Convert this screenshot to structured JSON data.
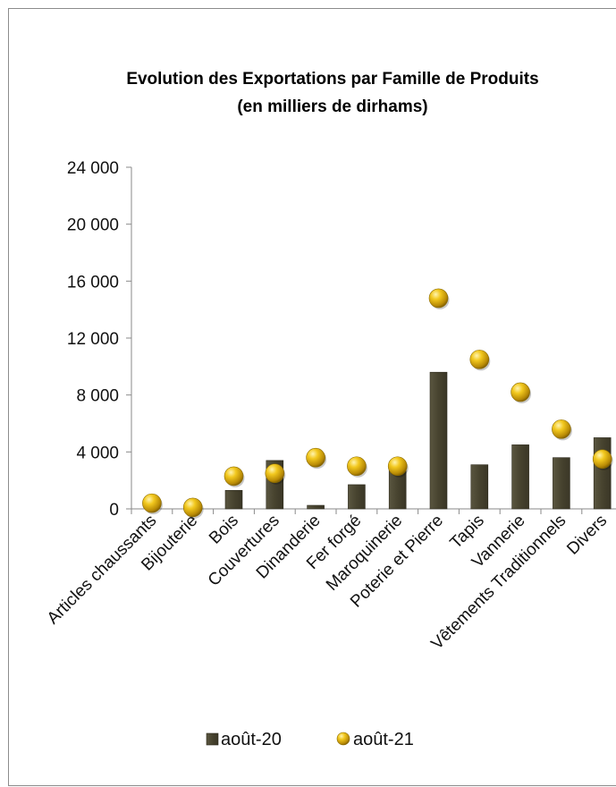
{
  "chart_data": {
    "type": "bar",
    "title": "Evolution des Exportations  par Famille de Produits",
    "subtitle": "(en milliers de dirhams)",
    "xlabel": "",
    "ylabel": "",
    "ylim": [
      0,
      24000
    ],
    "yticks": [
      0,
      4000,
      8000,
      12000,
      16000,
      20000,
      24000
    ],
    "ytick_labels": [
      "0",
      "4 000",
      "8 000",
      "12 000",
      "16 000",
      "20 000",
      "24 000"
    ],
    "grid": false,
    "legend_position": "bottom",
    "categories": [
      "Articles chaussants",
      "Bijouterie",
      "Bois",
      "Couvertures",
      "Dinanderie",
      "Fer forgé",
      "Maroquinerie",
      "Poterie et Pierre",
      "Tapis",
      "Vannerie",
      "Vêtements Traditionnels",
      "Divers"
    ],
    "series": [
      {
        "name": "août-20",
        "kind": "bar",
        "color": "#4a4632",
        "values": [
          0,
          0,
          1300,
          3400,
          250,
          1700,
          2700,
          9600,
          3100,
          4500,
          3600,
          5000
        ]
      },
      {
        "name": "août-21",
        "kind": "marker",
        "color": "#f0c020",
        "values": [
          400,
          100,
          2300,
          2500,
          3600,
          3000,
          3000,
          14800,
          10500,
          8200,
          5600,
          3500
        ]
      }
    ]
  }
}
